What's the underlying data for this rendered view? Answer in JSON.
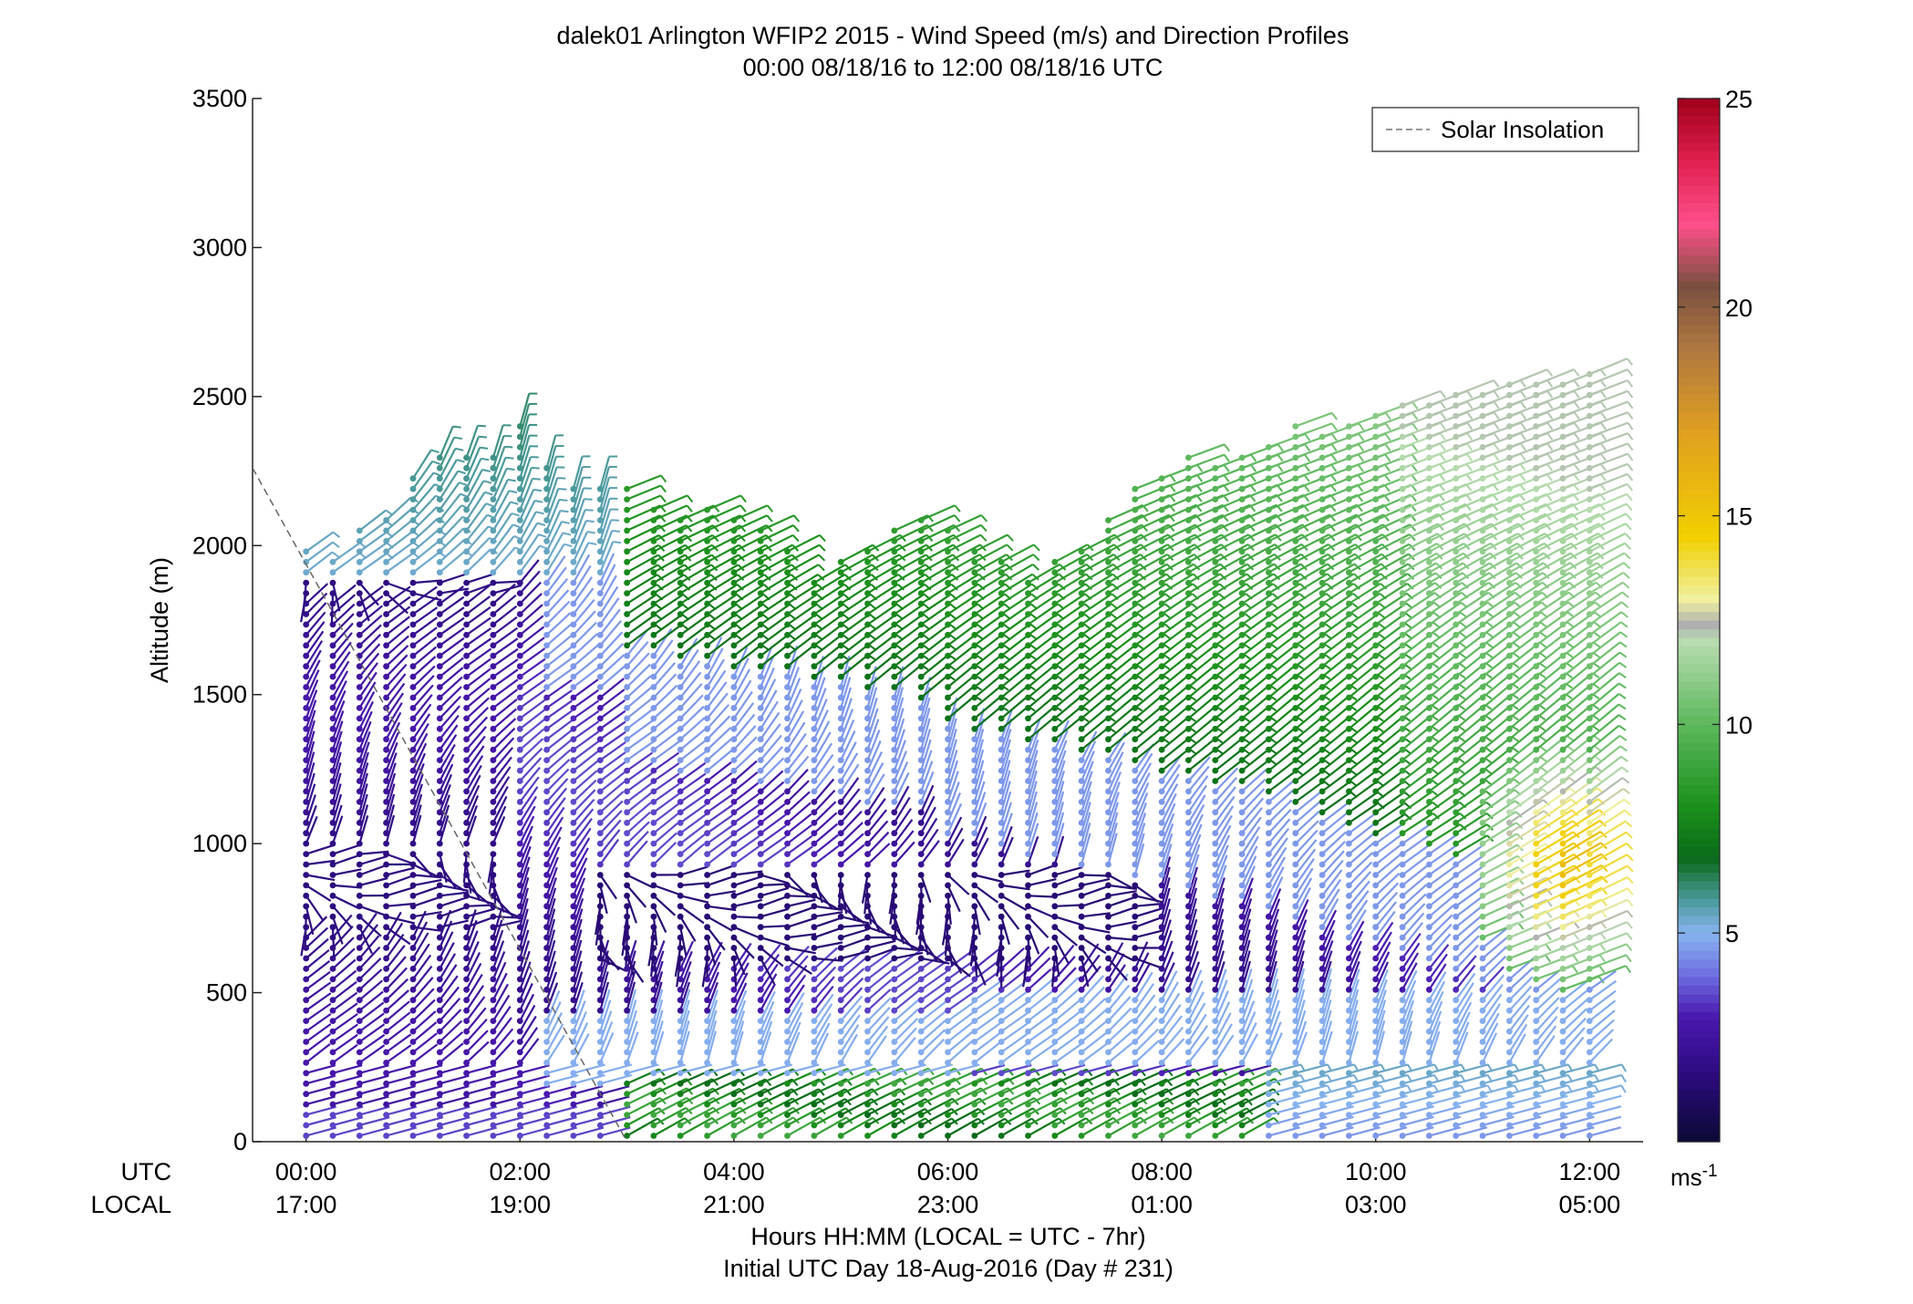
{
  "chart_data": {
    "type": "wind_barb_profile",
    "title": "dalek01 Arlington WFIP2 2015 - Wind Speed (m/s) and Direction Profiles",
    "subtitle": "00:00 08/18/16 to 12:00 08/18/16  UTC",
    "xlabel": "Hours HH:MM  (LOCAL = UTC - 7hr)",
    "xlabel2": "Initial UTC Day 18-Aug-2016 (Day # 231)",
    "ylabel": "Altitude (m)",
    "xlim_hours_utc": [
      -0.5,
      12.5
    ],
    "ylim": [
      0,
      3500
    ],
    "row_label_utc": "UTC",
    "row_label_local": "LOCAL",
    "x_ticks_hours": [
      0,
      2,
      4,
      6,
      8,
      10,
      12
    ],
    "x_tick_labels_utc": [
      "00:00",
      "02:00",
      "04:00",
      "06:00",
      "08:00",
      "10:00",
      "12:00"
    ],
    "x_tick_labels_local": [
      "17:00",
      "19:00",
      "21:00",
      "23:00",
      "01:00",
      "03:00",
      "05:00"
    ],
    "y_ticks": [
      0,
      500,
      1000,
      1500,
      2000,
      2500,
      3000,
      3500
    ],
    "legend": {
      "label": "Solar Insolation",
      "placement": "top-right",
      "line_color": "#777777"
    },
    "colorbar": {
      "range": [
        0,
        25
      ],
      "ticks": [
        5,
        10,
        15,
        20,
        25
      ],
      "unit": "ms",
      "unit_sup": "-1",
      "stops": [
        {
          "v": 0,
          "c": "#0a0a33"
        },
        {
          "v": 1.5,
          "c": "#2a0a7a"
        },
        {
          "v": 3,
          "c": "#4a18b0"
        },
        {
          "v": 4,
          "c": "#6e6ee0"
        },
        {
          "v": 5,
          "c": "#88b4f0"
        },
        {
          "v": 5.8,
          "c": "#4a9a9a"
        },
        {
          "v": 6.8,
          "c": "#0a6a1a"
        },
        {
          "v": 8,
          "c": "#1a8f1a"
        },
        {
          "v": 10,
          "c": "#5cb85c"
        },
        {
          "v": 12,
          "c": "#b8dcb0"
        },
        {
          "v": 12.4,
          "c": "#b0b0b0"
        },
        {
          "v": 13,
          "c": "#f0f0a0"
        },
        {
          "v": 14.5,
          "c": "#f2d000"
        },
        {
          "v": 17,
          "c": "#e0a020"
        },
        {
          "v": 19,
          "c": "#b07840"
        },
        {
          "v": 20.5,
          "c": "#7a5040"
        },
        {
          "v": 22,
          "c": "#ff4f8a"
        },
        {
          "v": 23.5,
          "c": "#e02050"
        },
        {
          "v": 25,
          "c": "#a0001a"
        }
      ]
    },
    "solar_insolation_line": [
      [
        -0.5,
        2260
      ],
      [
        3.0,
        0
      ]
    ],
    "profile_times_hours": [
      0,
      0.25,
      0.5,
      0.75,
      1,
      1.25,
      1.5,
      1.75,
      2,
      2.25,
      2.5,
      2.75,
      3,
      3.25,
      3.5,
      3.75,
      4,
      4.25,
      4.5,
      4.75,
      5,
      5.25,
      5.5,
      5.75,
      6,
      6.25,
      6.5,
      6.75,
      7,
      7.25,
      7.5,
      7.75,
      8,
      8.25,
      8.5,
      8.75,
      9,
      9.25,
      9.5,
      9.75,
      10,
      10.25,
      10.5,
      10.75,
      11,
      11.25,
      11.5,
      11.75,
      12
    ],
    "profile_top_altitudes_m": [
      2000,
      1950,
      2050,
      2100,
      2250,
      2300,
      2300,
      2300,
      2400,
      2280,
      2220,
      2200,
      2200,
      2150,
      2100,
      2150,
      2100,
      2080,
      2000,
      1900,
      1950,
      2000,
      2050,
      2100,
      2050,
      2000,
      1950,
      1900,
      1950,
      2000,
      2100,
      2200,
      2250,
      2300,
      2280,
      2300,
      2350,
      2400,
      2380,
      2420,
      2450,
      2480,
      2500,
      2520,
      2520,
      2540,
      2550,
      2570,
      2600
    ],
    "profile_gap_altitude_m": 35,
    "shear_layer_altitudes_m": {
      "surface_jet_top": 200,
      "green_layer_hours": [
        3,
        8.8
      ]
    }
  }
}
